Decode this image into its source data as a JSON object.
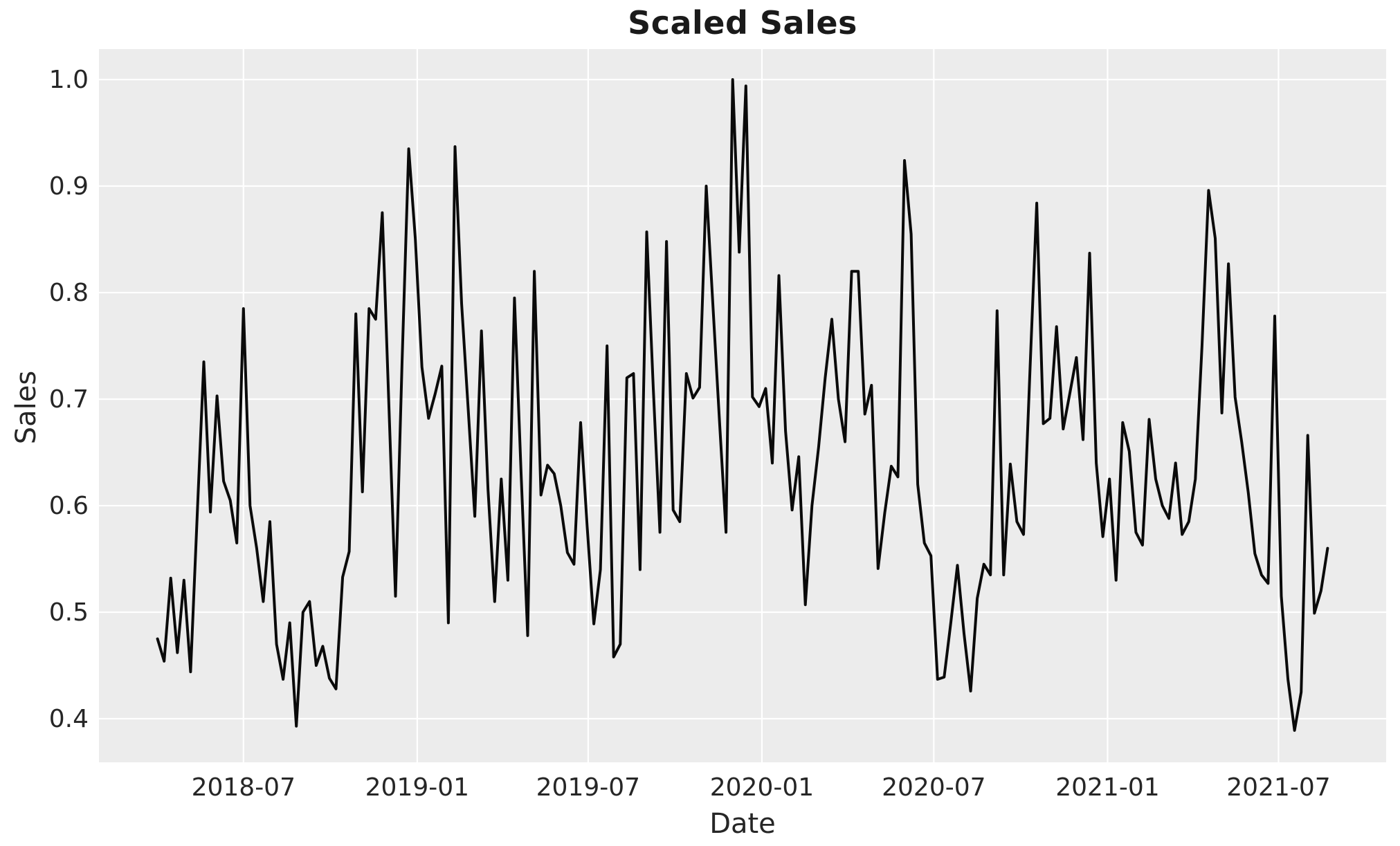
{
  "figure": {
    "title": "Scaled Sales",
    "xlabel": "Date",
    "ylabel": "Sales"
  },
  "chart_data": {
    "type": "line",
    "title": "Scaled Sales",
    "xlabel": "Date",
    "ylabel": "Sales",
    "series_name": "Scaled Sales",
    "frequency": "weekly",
    "grid": true,
    "legend_position": "none",
    "plot_bg_color": "#ececec",
    "grid_color": "#ffffff",
    "line_color": "#0a0a0a",
    "text_color": "#262626",
    "ylim": [
      0.358,
      1.029
    ],
    "y_ticks": [
      0.4,
      0.5,
      0.6,
      0.7,
      0.8,
      0.9,
      1.0
    ],
    "x_ticks": [
      "2018-07",
      "2019-01",
      "2019-07",
      "2020-01",
      "2020-07",
      "2021-01",
      "2021-07"
    ],
    "x": [
      "2018-04-01",
      "2018-04-08",
      "2018-04-15",
      "2018-04-22",
      "2018-04-29",
      "2018-05-06",
      "2018-05-13",
      "2018-05-20",
      "2018-05-27",
      "2018-06-03",
      "2018-06-10",
      "2018-06-17",
      "2018-06-24",
      "2018-07-01",
      "2018-07-08",
      "2018-07-15",
      "2018-07-22",
      "2018-07-29",
      "2018-08-05",
      "2018-08-12",
      "2018-08-19",
      "2018-08-26",
      "2018-09-02",
      "2018-09-09",
      "2018-09-16",
      "2018-09-23",
      "2018-09-30",
      "2018-10-07",
      "2018-10-14",
      "2018-10-21",
      "2018-10-28",
      "2018-11-04",
      "2018-11-11",
      "2018-11-18",
      "2018-11-25",
      "2018-12-02",
      "2018-12-09",
      "2018-12-16",
      "2018-12-23",
      "2018-12-30",
      "2019-01-06",
      "2019-01-13",
      "2019-01-20",
      "2019-01-27",
      "2019-02-03",
      "2019-02-10",
      "2019-02-17",
      "2019-02-24",
      "2019-03-03",
      "2019-03-10",
      "2019-03-17",
      "2019-03-24",
      "2019-03-31",
      "2019-04-07",
      "2019-04-14",
      "2019-04-21",
      "2019-04-28",
      "2019-05-05",
      "2019-05-12",
      "2019-05-19",
      "2019-05-26",
      "2019-06-02",
      "2019-06-09",
      "2019-06-16",
      "2019-06-23",
      "2019-06-30",
      "2019-07-07",
      "2019-07-14",
      "2019-07-21",
      "2019-07-28",
      "2019-08-04",
      "2019-08-11",
      "2019-08-18",
      "2019-08-25",
      "2019-09-01",
      "2019-09-08",
      "2019-09-15",
      "2019-09-22",
      "2019-09-29",
      "2019-10-06",
      "2019-10-13",
      "2019-10-20",
      "2019-10-27",
      "2019-11-03",
      "2019-11-10",
      "2019-11-17",
      "2019-11-24",
      "2019-12-01",
      "2019-12-08",
      "2019-12-15",
      "2019-12-22",
      "2019-12-29",
      "2020-01-05",
      "2020-01-12",
      "2020-01-19",
      "2020-01-26",
      "2020-02-02",
      "2020-02-09",
      "2020-02-16",
      "2020-02-23",
      "2020-03-01",
      "2020-03-08",
      "2020-03-15",
      "2020-03-22",
      "2020-03-29",
      "2020-04-05",
      "2020-04-12",
      "2020-04-19",
      "2020-04-26",
      "2020-05-03",
      "2020-05-10",
      "2020-05-17",
      "2020-05-24",
      "2020-05-31",
      "2020-06-07",
      "2020-06-14",
      "2020-06-21",
      "2020-06-28",
      "2020-07-05",
      "2020-07-12",
      "2020-07-19",
      "2020-07-26",
      "2020-08-02",
      "2020-08-09",
      "2020-08-16",
      "2020-08-23",
      "2020-08-30",
      "2020-09-06",
      "2020-09-13",
      "2020-09-20",
      "2020-09-27",
      "2020-10-04",
      "2020-10-11",
      "2020-10-18",
      "2020-10-25",
      "2020-11-01",
      "2020-11-08",
      "2020-11-15",
      "2020-11-22",
      "2020-11-29",
      "2020-12-06",
      "2020-12-13",
      "2020-12-20",
      "2020-12-27",
      "2021-01-03",
      "2021-01-10",
      "2021-01-17",
      "2021-01-24",
      "2021-01-31",
      "2021-02-07",
      "2021-02-14",
      "2021-02-21",
      "2021-02-28",
      "2021-03-07",
      "2021-03-14",
      "2021-03-21",
      "2021-03-28",
      "2021-04-04",
      "2021-04-11",
      "2021-04-18",
      "2021-04-25",
      "2021-05-02",
      "2021-05-09",
      "2021-05-16",
      "2021-05-23",
      "2021-05-30",
      "2021-06-06",
      "2021-06-13",
      "2021-06-20",
      "2021-06-27",
      "2021-07-04",
      "2021-07-11",
      "2021-07-18",
      "2021-07-25",
      "2021-08-01",
      "2021-08-08",
      "2021-08-15",
      "2021-08-22"
    ],
    "values": [
      0.475,
      0.454,
      0.532,
      0.462,
      0.53,
      0.444,
      0.59,
      0.735,
      0.594,
      0.703,
      0.623,
      0.605,
      0.565,
      0.785,
      0.6,
      0.56,
      0.51,
      0.585,
      0.47,
      0.437,
      0.49,
      0.393,
      0.5,
      0.51,
      0.45,
      0.468,
      0.438,
      0.428,
      0.533,
      0.557,
      0.78,
      0.613,
      0.785,
      0.775,
      0.875,
      0.695,
      0.515,
      0.735,
      0.935,
      0.85,
      0.73,
      0.682,
      0.705,
      0.731,
      0.49,
      0.937,
      0.79,
      0.69,
      0.59,
      0.764,
      0.615,
      0.51,
      0.625,
      0.53,
      0.795,
      0.63,
      0.478,
      0.82,
      0.61,
      0.638,
      0.63,
      0.6,
      0.556,
      0.545,
      0.678,
      0.58,
      0.489,
      0.54,
      0.75,
      0.458,
      0.47,
      0.72,
      0.724,
      0.54,
      0.857,
      0.71,
      0.575,
      0.848,
      0.596,
      0.585,
      0.724,
      0.701,
      0.711,
      0.9,
      0.79,
      0.68,
      0.575,
      1.0,
      0.838,
      0.994,
      0.702,
      0.693,
      0.71,
      0.64,
      0.816,
      0.67,
      0.596,
      0.646,
      0.507,
      0.6,
      0.655,
      0.72,
      0.775,
      0.7,
      0.66,
      0.82,
      0.82,
      0.686,
      0.713,
      0.541,
      0.593,
      0.637,
      0.627,
      0.924,
      0.855,
      0.62,
      0.565,
      0.553,
      0.437,
      0.439,
      0.49,
      0.544,
      0.48,
      0.426,
      0.513,
      0.545,
      0.535,
      0.783,
      0.535,
      0.639,
      0.585,
      0.573,
      0.73,
      0.884,
      0.677,
      0.682,
      0.768,
      0.672,
      0.705,
      0.739,
      0.662,
      0.837,
      0.64,
      0.571,
      0.625,
      0.53,
      0.678,
      0.651,
      0.575,
      0.563,
      0.681,
      0.625,
      0.6,
      0.588,
      0.64,
      0.573,
      0.585,
      0.625,
      0.75,
      0.896,
      0.851,
      0.687,
      0.827,
      0.702,
      0.66,
      0.612,
      0.555,
      0.535,
      0.527,
      0.778,
      0.515,
      0.437,
      0.389,
      0.425,
      0.666,
      0.499,
      0.52,
      0.56
    ]
  }
}
